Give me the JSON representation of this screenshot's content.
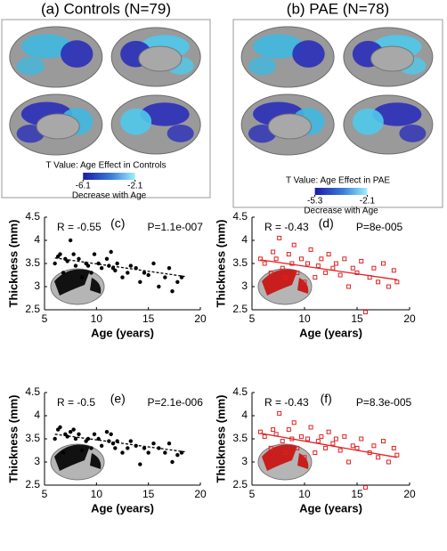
{
  "chart_data": [
    {
      "type": "brain-map",
      "title": "(a) Controls (N=79)",
      "colorbar_label": "T Value: Age Effect in Controls",
      "colorbar_caption": "Decrease with Age",
      "clim": [
        -6.1,
        -2.1
      ],
      "colorbar_ticks": [
        -6.1,
        -2.1
      ]
    },
    {
      "type": "brain-map",
      "title": "(b) PAE (N=78)",
      "colorbar_label": "T Value: Age Effect in PAE",
      "colorbar_caption": "Decrease with Age",
      "clim": [
        -5.3,
        -2.1
      ],
      "colorbar_ticks": [
        -5.3,
        -2.1
      ]
    },
    {
      "type": "scatter",
      "panel_label": "(c)",
      "r_text": "R = -0.55",
      "p_text": "P=1.1e-007",
      "xlabel": "Age (years)",
      "ylabel": "Thickness (mm)",
      "xlim": [
        5,
        20
      ],
      "xticks": [
        5,
        10,
        15,
        20
      ],
      "ylim": [
        2.5,
        4.5
      ],
      "yticks": [
        2.5,
        3,
        3.5,
        4,
        4.5
      ],
      "color": "#000000",
      "marker": "circle",
      "trend_style": "dashed",
      "x": [
        6.0,
        6.3,
        6.5,
        6.8,
        7.0,
        7.2,
        7.5,
        7.8,
        8.0,
        8.3,
        8.6,
        9.0,
        9.2,
        9.5,
        9.8,
        10.2,
        10.5,
        11.0,
        11.2,
        11.4,
        11.6,
        11.8,
        12.0,
        12.5,
        13.0,
        13.3,
        13.8,
        14.2,
        14.6,
        15.0,
        15.5,
        16.0,
        16.6,
        17.0,
        17.3,
        17.8,
        18.2
      ],
      "y": [
        3.5,
        3.65,
        3.7,
        3.3,
        3.6,
        3.55,
        4.0,
        3.7,
        3.45,
        3.6,
        3.2,
        3.5,
        3.45,
        3.3,
        3.7,
        3.5,
        3.4,
        3.6,
        3.45,
        3.75,
        3.4,
        3.35,
        3.5,
        3.2,
        3.3,
        3.45,
        3.4,
        3.1,
        3.3,
        3.25,
        3.5,
        3.0,
        3.2,
        3.4,
        2.9,
        3.1,
        3.2
      ],
      "trend": {
        "x": [
          6,
          18.5
        ],
        "y": [
          3.62,
          3.22
        ]
      }
    },
    {
      "type": "scatter",
      "panel_label": "(d)",
      "r_text": "R = -0.43",
      "p_text": "P=8e-005",
      "xlabel": "Age (years)",
      "ylabel": "Thickness (mm)",
      "xlim": [
        5,
        20
      ],
      "xticks": [
        5,
        10,
        15,
        20
      ],
      "ylim": [
        2.5,
        4.5
      ],
      "yticks": [
        2.5,
        3,
        3.5,
        4,
        4.5
      ],
      "color": "#e02020",
      "marker": "square",
      "trend_style": "solid",
      "x": [
        5.8,
        6.2,
        6.8,
        7.0,
        7.3,
        7.6,
        7.9,
        8.2,
        8.5,
        8.8,
        9.0,
        9.3,
        9.7,
        10.0,
        10.3,
        10.6,
        11.0,
        11.3,
        11.6,
        12.0,
        12.3,
        12.7,
        13.0,
        13.4,
        13.8,
        14.2,
        14.6,
        15.0,
        15.4,
        15.8,
        16.2,
        16.6,
        17.0,
        17.5,
        18.0,
        18.5,
        18.8
      ],
      "y": [
        3.6,
        3.5,
        3.3,
        3.75,
        3.6,
        4.05,
        3.4,
        3.2,
        3.7,
        3.5,
        3.9,
        3.3,
        3.6,
        3.1,
        3.5,
        3.8,
        3.2,
        3.45,
        3.6,
        3.3,
        3.7,
        3.4,
        3.5,
        3.25,
        3.6,
        3.0,
        3.4,
        3.3,
        3.55,
        2.45,
        3.2,
        3.4,
        3.1,
        3.5,
        3.0,
        3.35,
        3.1
      ],
      "trend": {
        "x": [
          5.8,
          18.8
        ],
        "y": [
          3.58,
          3.15
        ]
      }
    },
    {
      "type": "scatter",
      "panel_label": "(e)",
      "r_text": "R = -0.5",
      "p_text": "P=2.1e-006",
      "xlabel": "Age (years)",
      "ylabel": "Thickness (mm)",
      "xlim": [
        5,
        20
      ],
      "xticks": [
        5,
        10,
        15,
        20
      ],
      "ylim": [
        2.5,
        4.5
      ],
      "yticks": [
        2.5,
        3,
        3.5,
        4,
        4.5
      ],
      "color": "#000000",
      "marker": "circle",
      "trend_style": "dashed",
      "x": [
        6.0,
        6.3,
        6.5,
        6.8,
        7.0,
        7.2,
        7.5,
        7.8,
        8.0,
        8.3,
        8.6,
        9.0,
        9.2,
        9.5,
        9.8,
        10.2,
        10.5,
        11.0,
        11.2,
        11.4,
        11.6,
        11.8,
        12.0,
        12.5,
        13.0,
        13.3,
        13.8,
        14.2,
        14.6,
        15.0,
        15.5,
        16.0,
        16.6,
        17.0,
        17.3,
        17.8,
        18.2
      ],
      "y": [
        3.5,
        3.7,
        3.75,
        3.2,
        3.6,
        3.55,
        3.65,
        3.7,
        3.5,
        3.6,
        3.25,
        3.45,
        3.5,
        3.3,
        3.6,
        3.5,
        3.35,
        3.65,
        3.45,
        3.6,
        3.4,
        3.3,
        3.45,
        3.2,
        3.3,
        3.45,
        3.35,
        2.95,
        3.3,
        3.2,
        3.4,
        3.3,
        3.2,
        3.4,
        3.0,
        3.15,
        3.2
      ],
      "trend": {
        "x": [
          6,
          18.5
        ],
        "y": [
          3.6,
          3.22
        ]
      }
    },
    {
      "type": "scatter",
      "panel_label": "(f)",
      "r_text": "R = -0.43",
      "p_text": "P=8.3e-005",
      "xlabel": "Age (years)",
      "ylabel": "Thickness (mm)",
      "xlim": [
        5,
        20
      ],
      "xticks": [
        5,
        10,
        15,
        20
      ],
      "ylim": [
        2.5,
        4.5
      ],
      "yticks": [
        2.5,
        3,
        3.5,
        4,
        4.5
      ],
      "color": "#e02020",
      "marker": "square",
      "trend_style": "solid",
      "x": [
        5.8,
        6.2,
        6.8,
        7.0,
        7.3,
        7.6,
        7.9,
        8.2,
        8.5,
        8.8,
        9.0,
        9.3,
        9.7,
        10.0,
        10.3,
        10.6,
        11.0,
        11.3,
        11.6,
        12.0,
        12.3,
        12.7,
        13.0,
        13.4,
        13.8,
        14.2,
        14.6,
        15.0,
        15.4,
        15.8,
        16.2,
        16.6,
        17.0,
        17.5,
        18.0,
        18.5,
        18.8
      ],
      "y": [
        3.65,
        3.55,
        3.3,
        3.7,
        3.6,
        4.05,
        3.45,
        3.2,
        3.7,
        3.5,
        3.85,
        3.3,
        3.55,
        3.1,
        3.5,
        3.75,
        3.2,
        3.45,
        3.55,
        3.3,
        3.65,
        3.4,
        3.5,
        3.25,
        3.55,
        3.0,
        3.35,
        3.3,
        3.5,
        2.45,
        3.2,
        3.35,
        3.1,
        3.45,
        3.0,
        3.3,
        3.15
      ],
      "trend": {
        "x": [
          5.8,
          18.8
        ],
        "y": [
          3.62,
          3.1
        ]
      }
    }
  ]
}
